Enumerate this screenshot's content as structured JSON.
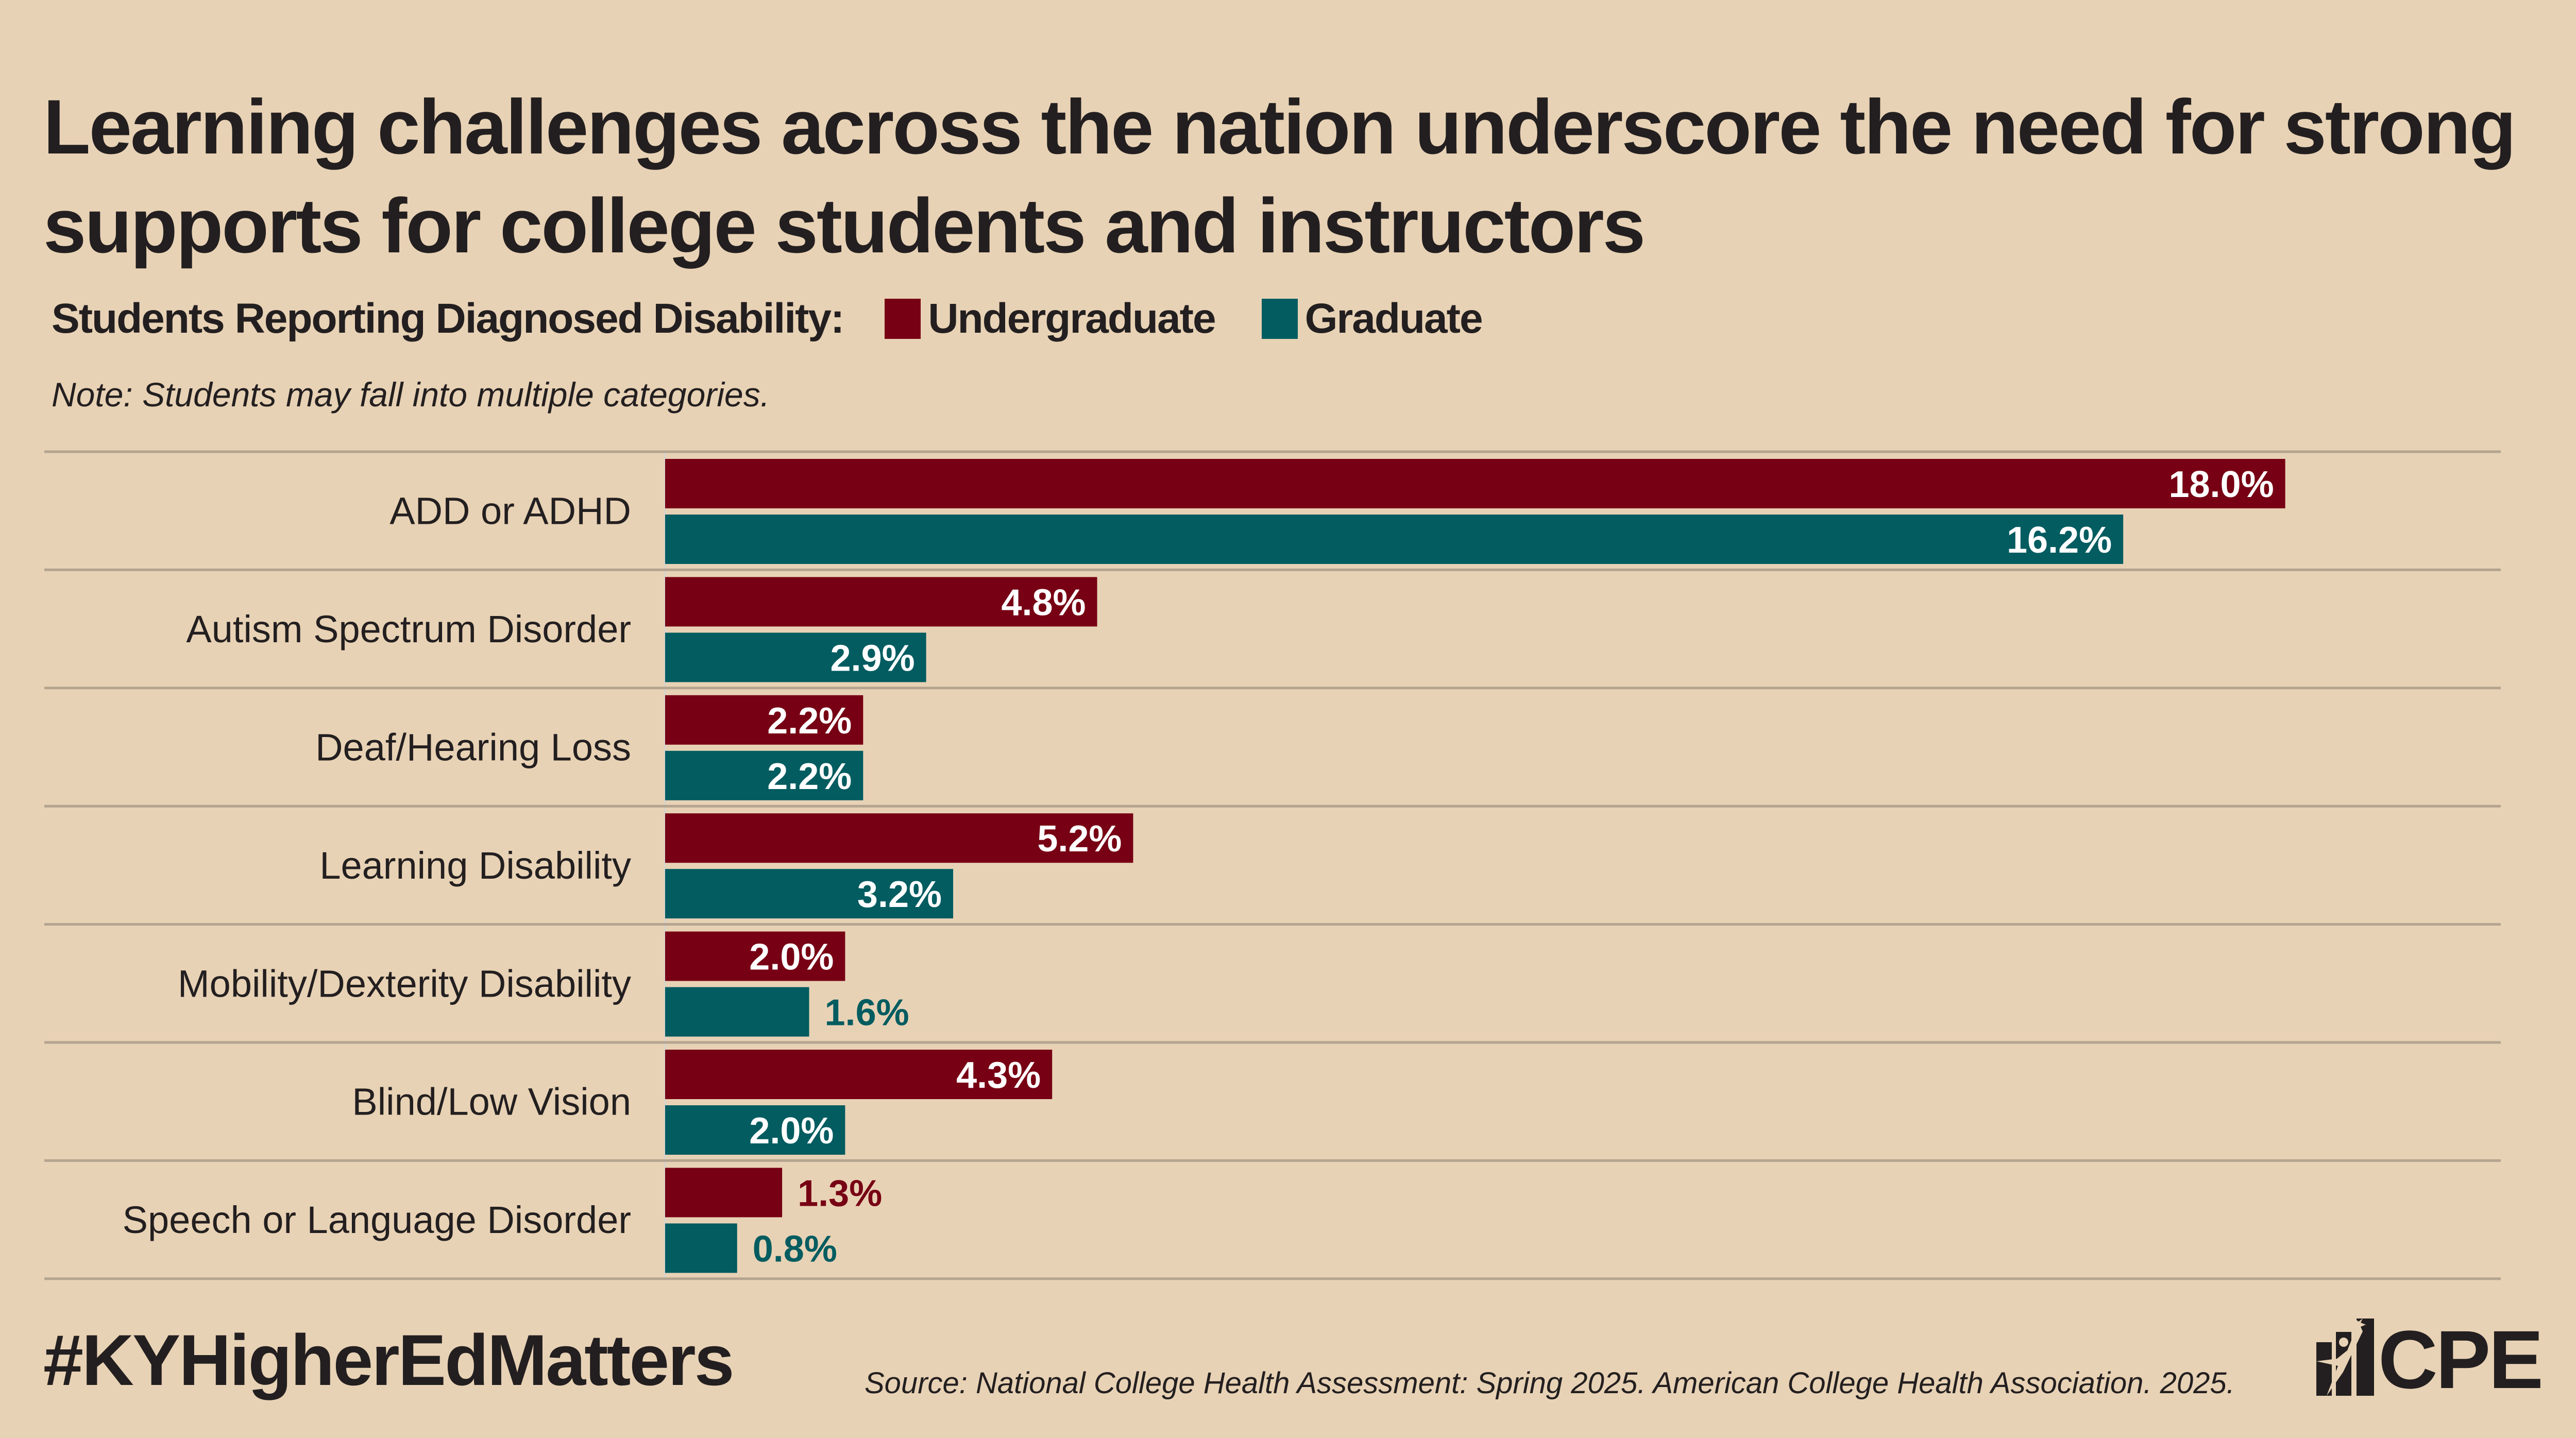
{
  "header": {
    "title": "Learning challenges across the nation underscore the need for strong supports for college students and instructors",
    "legend_label": "Students Reporting Diagnosed Disability:",
    "note": "Note: Students may fall into multiple categories."
  },
  "colors": {
    "background": "#E8D2B5",
    "undergraduate": "#770014",
    "graduate": "#025C60",
    "gridline": "#B4A48F",
    "text": "#231F20"
  },
  "chart_data": {
    "type": "bar",
    "orientation": "horizontal",
    "title": "Learning challenges across the nation underscore the need for strong supports for college students and instructors",
    "xlabel": "",
    "ylabel": "",
    "unit": "%",
    "xlim": [
      0,
      18
    ],
    "grid": false,
    "legend_position": "top-left",
    "categories": [
      "ADD or ADHD",
      "Autism Spectrum Disorder",
      "Deaf/Hearing Loss",
      "Learning Disability",
      "Mobility/Dexterity Disability",
      "Blind/Low Vision",
      "Speech or Language Disorder"
    ],
    "series": [
      {
        "name": "Undergraduate",
        "color": "#770014",
        "values": [
          18.0,
          4.8,
          2.2,
          5.2,
          2.0,
          4.3,
          1.3
        ],
        "labels": [
          "18.0%",
          "4.8%",
          "2.2%",
          "5.2%",
          "2.0%",
          "4.3%",
          "1.3%"
        ]
      },
      {
        "name": "Graduate",
        "color": "#025C60",
        "values": [
          16.2,
          2.9,
          2.2,
          3.2,
          1.6,
          2.0,
          0.8
        ],
        "labels": [
          "16.2%",
          "2.9%",
          "2.2%",
          "3.2%",
          "1.6%",
          "2.0%",
          "0.8%"
        ]
      }
    ]
  },
  "footer": {
    "hashtag": "#KYHigherEdMatters",
    "source": "Source: National College Health Assessment: Spring 2025. American College Health Association. 2025.",
    "logo_text": "CPE",
    "logo_icon": "star-figure-bars-icon"
  }
}
